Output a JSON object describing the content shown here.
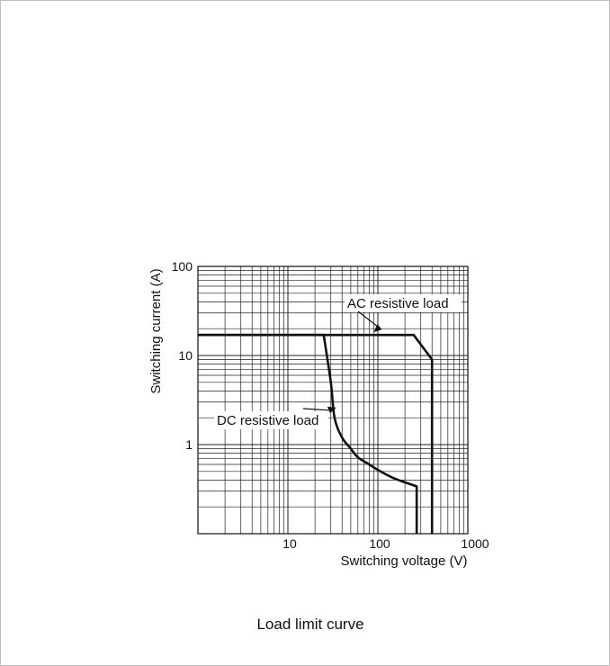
{
  "caption": "Load limit curve",
  "chart_data": {
    "type": "line",
    "title": "",
    "xlabel": "Switching voltage (V)",
    "ylabel": "Switching current (A)",
    "xscale": "log",
    "yscale": "log",
    "xlim": [
      1,
      1000
    ],
    "ylim": [
      0.1,
      100
    ],
    "xticks": [
      10,
      100,
      1000
    ],
    "xtick_labels": [
      "10",
      "100",
      "1000"
    ],
    "yticks": [
      1,
      10,
      100
    ],
    "ytick_labels": [
      "1",
      "10",
      "100"
    ],
    "grid": true,
    "colors": {
      "line": "#111111",
      "grid": "#222222"
    },
    "series": [
      {
        "name": "AC resistive load",
        "x": [
          1,
          250,
          400,
          400
        ],
        "y": [
          17,
          17,
          9,
          0.1
        ]
      },
      {
        "name": "DC resistive load",
        "x": [
          1,
          25,
          30,
          33,
          40,
          50,
          60,
          80,
          100,
          150,
          270,
          270
        ],
        "y": [
          17,
          17,
          5,
          2,
          1.2,
          0.9,
          0.72,
          0.6,
          0.52,
          0.42,
          0.34,
          0.1
        ]
      }
    ],
    "annotations": [
      {
        "text": "AC resistive load",
        "series": "AC resistive load"
      },
      {
        "text": "DC resistive load",
        "series": "DC resistive load"
      }
    ]
  }
}
